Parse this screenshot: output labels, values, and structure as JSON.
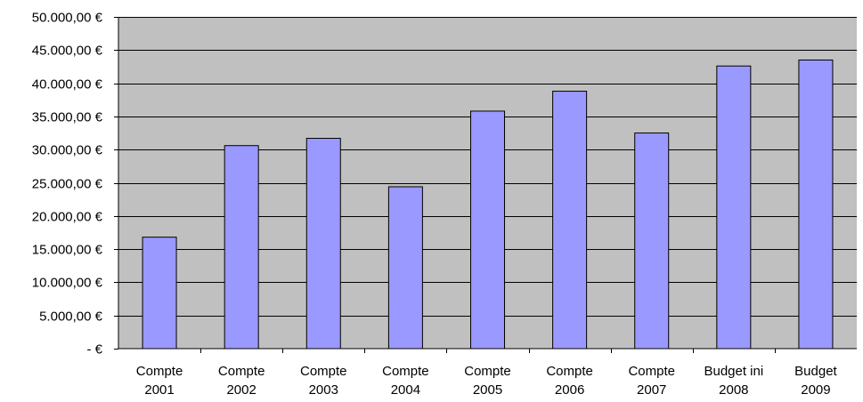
{
  "chart_data": {
    "type": "bar",
    "title": "",
    "xlabel": "",
    "ylabel": "",
    "ylim": [
      0,
      50000
    ],
    "y_ticks": [
      0,
      5000,
      10000,
      15000,
      20000,
      25000,
      30000,
      35000,
      40000,
      45000,
      50000
    ],
    "y_tick_labels": [
      "-       €",
      "5.000,00 €",
      "10.000,00 €",
      "15.000,00 €",
      "20.000,00 €",
      "25.000,00 €",
      "30.000,00 €",
      "35.000,00 €",
      "40.000,00 €",
      "45.000,00 €",
      "50.000,00 €"
    ],
    "categories": [
      [
        "Compte",
        "2001"
      ],
      [
        "Compte",
        "2002"
      ],
      [
        "Compte",
        "2003"
      ],
      [
        "Compte",
        "2004"
      ],
      [
        "Compte",
        "2005"
      ],
      [
        "Compte",
        "2006"
      ],
      [
        "Compte",
        "2007"
      ],
      [
        "Budget ini",
        "2008"
      ],
      [
        "Budget",
        "2009"
      ]
    ],
    "values": [
      16800,
      30600,
      31700,
      24400,
      35800,
      38800,
      32500,
      42600,
      43500
    ],
    "grid": true,
    "legend": "none",
    "colors": {
      "plot_background": "#c0c0c0",
      "bar_fill": "#9999ff",
      "bar_stroke": "#000000",
      "gridline": "#000000"
    }
  }
}
